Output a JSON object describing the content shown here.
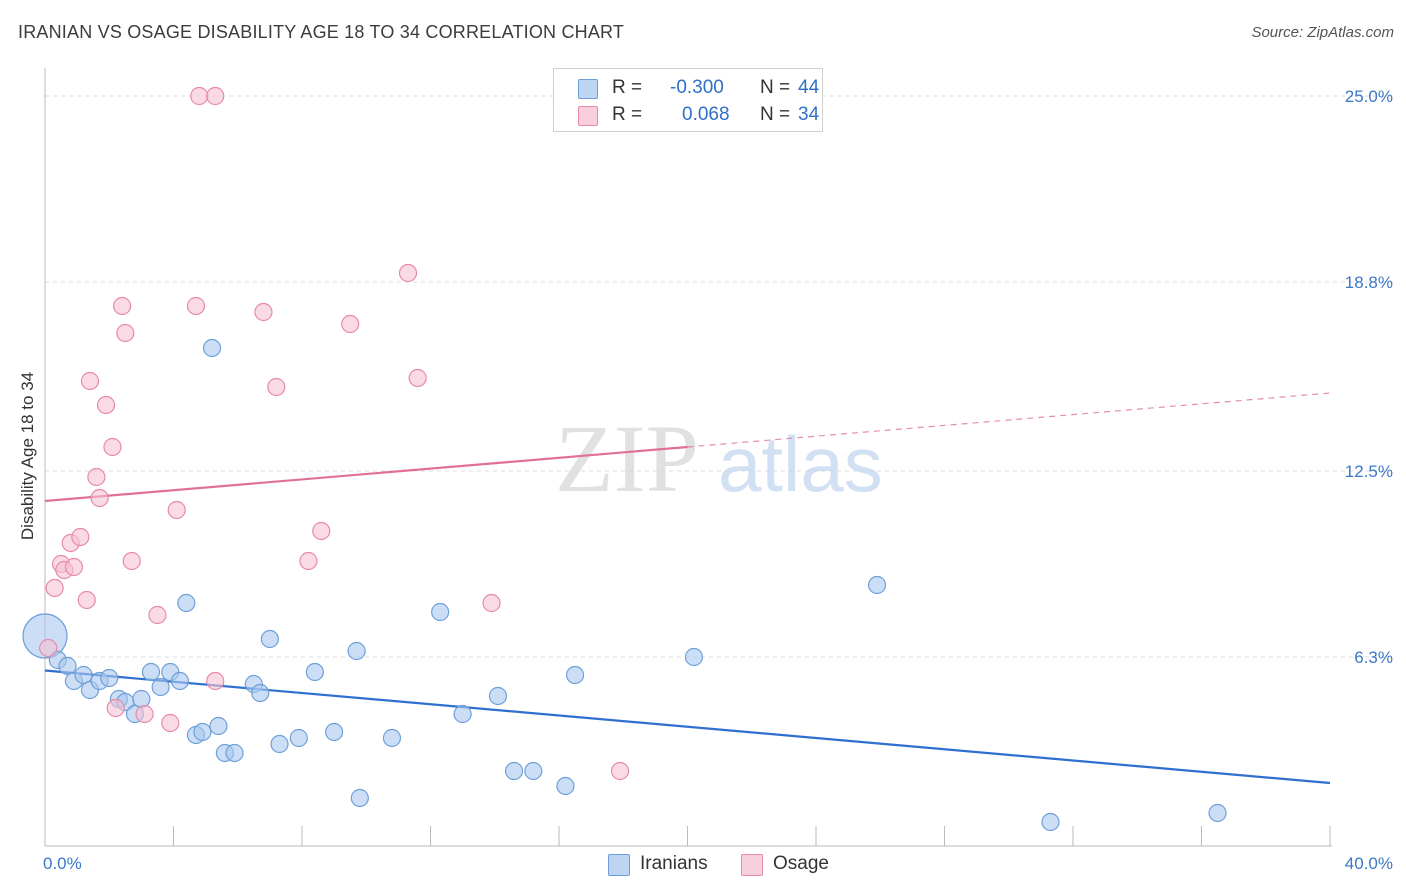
{
  "title": "IRANIAN VS OSAGE DISABILITY AGE 18 TO 34 CORRELATION CHART",
  "source": "Source: ZipAtlas.com",
  "watermark": {
    "zip": "ZIP",
    "atlas": "atlas"
  },
  "colors": {
    "iranians_fill": "#a9c8f0",
    "iranians_stroke": "#6e9fd8",
    "iranians_line": "#2f6fd0",
    "osage_fill": "#f6c2d3",
    "osage_stroke": "#e68aa8",
    "osage_line": "#e0709a",
    "tick_label": "#3a78c9",
    "grid": "#dddddd"
  },
  "legend": {
    "rows": [
      {
        "r_label": "R =",
        "r_value": "-0.300",
        "n_label": "N =",
        "n_value": "44"
      },
      {
        "r_label": "R =",
        "r_value": "0.068",
        "n_label": "N =",
        "n_value": "34"
      }
    ]
  },
  "chart_data": {
    "type": "scatter",
    "title": "IRANIAN VS OSAGE DISABILITY AGE 18 TO 34 CORRELATION CHART",
    "xlabel": "",
    "ylabel": "Disability Age 18 to 34",
    "xlim": [
      0,
      40
    ],
    "ylim": [
      0,
      25.6
    ],
    "x_tick_labels": [
      "0.0%",
      "40.0%"
    ],
    "y_ticks": [
      6.3,
      12.5,
      18.8,
      25.0
    ],
    "y_tick_labels": [
      "6.3%",
      "12.5%",
      "18.8%",
      "25.0%"
    ],
    "grid": "horizontal dashed",
    "legend_placement": "top-center and bottom",
    "series": [
      {
        "name": "Iranians",
        "r": -0.3,
        "n": 44,
        "trend": {
          "x": [
            0,
            40
          ],
          "y": [
            5.85,
            2.1
          ]
        },
        "trend_solid_to_x": 40,
        "points": [
          {
            "x": 0.0,
            "y": 7.0,
            "big": true
          },
          {
            "x": 0.4,
            "y": 6.2
          },
          {
            "x": 0.7,
            "y": 6.0
          },
          {
            "x": 0.9,
            "y": 5.5
          },
          {
            "x": 1.2,
            "y": 5.7
          },
          {
            "x": 1.4,
            "y": 5.2
          },
          {
            "x": 1.7,
            "y": 5.5
          },
          {
            "x": 2.0,
            "y": 5.6
          },
          {
            "x": 2.3,
            "y": 4.9
          },
          {
            "x": 2.5,
            "y": 4.8
          },
          {
            "x": 2.8,
            "y": 4.4
          },
          {
            "x": 3.0,
            "y": 4.9
          },
          {
            "x": 3.3,
            "y": 5.8
          },
          {
            "x": 3.6,
            "y": 5.3
          },
          {
            "x": 3.9,
            "y": 5.8
          },
          {
            "x": 4.2,
            "y": 5.5
          },
          {
            "x": 4.4,
            "y": 8.1
          },
          {
            "x": 4.7,
            "y": 3.7
          },
          {
            "x": 4.9,
            "y": 3.8
          },
          {
            "x": 5.2,
            "y": 16.6
          },
          {
            "x": 5.4,
            "y": 4.0
          },
          {
            "x": 5.6,
            "y": 3.1
          },
          {
            "x": 5.9,
            "y": 3.1
          },
          {
            "x": 6.5,
            "y": 5.4
          },
          {
            "x": 6.7,
            "y": 5.1
          },
          {
            "x": 7.0,
            "y": 6.9
          },
          {
            "x": 7.3,
            "y": 3.4
          },
          {
            "x": 7.9,
            "y": 3.6
          },
          {
            "x": 8.4,
            "y": 5.8
          },
          {
            "x": 9.0,
            "y": 3.8
          },
          {
            "x": 9.7,
            "y": 6.5
          },
          {
            "x": 9.8,
            "y": 1.6
          },
          {
            "x": 10.8,
            "y": 3.6
          },
          {
            "x": 12.3,
            "y": 7.8
          },
          {
            "x": 13.0,
            "y": 4.4
          },
          {
            "x": 14.1,
            "y": 5.0
          },
          {
            "x": 14.6,
            "y": 2.5
          },
          {
            "x": 15.2,
            "y": 2.5
          },
          {
            "x": 16.2,
            "y": 2.0
          },
          {
            "x": 16.5,
            "y": 5.7
          },
          {
            "x": 20.2,
            "y": 6.3
          },
          {
            "x": 25.9,
            "y": 8.7
          },
          {
            "x": 31.3,
            "y": 0.8
          },
          {
            "x": 36.5,
            "y": 1.1
          }
        ]
      },
      {
        "name": "Osage",
        "r": 0.068,
        "n": 34,
        "trend": {
          "x": [
            0,
            40
          ],
          "y": [
            11.5,
            15.1
          ]
        },
        "trend_solid_to_x": 20,
        "points": [
          {
            "x": 0.1,
            "y": 6.6
          },
          {
            "x": 0.3,
            "y": 8.6
          },
          {
            "x": 0.5,
            "y": 9.4
          },
          {
            "x": 0.6,
            "y": 9.2
          },
          {
            "x": 0.8,
            "y": 10.1
          },
          {
            "x": 0.9,
            "y": 9.3
          },
          {
            "x": 1.1,
            "y": 10.3
          },
          {
            "x": 1.3,
            "y": 8.2
          },
          {
            "x": 1.4,
            "y": 15.5
          },
          {
            "x": 1.6,
            "y": 12.3
          },
          {
            "x": 1.7,
            "y": 11.6
          },
          {
            "x": 1.9,
            "y": 14.7
          },
          {
            "x": 2.1,
            "y": 13.3
          },
          {
            "x": 2.2,
            "y": 4.6
          },
          {
            "x": 2.4,
            "y": 18.0
          },
          {
            "x": 2.5,
            "y": 17.1
          },
          {
            "x": 2.7,
            "y": 9.5
          },
          {
            "x": 3.1,
            "y": 4.4
          },
          {
            "x": 3.5,
            "y": 7.7
          },
          {
            "x": 3.9,
            "y": 4.1
          },
          {
            "x": 4.1,
            "y": 11.2
          },
          {
            "x": 4.7,
            "y": 18.0
          },
          {
            "x": 4.8,
            "y": 25.0
          },
          {
            "x": 5.3,
            "y": 25.0
          },
          {
            "x": 5.3,
            "y": 5.5
          },
          {
            "x": 6.8,
            "y": 17.8
          },
          {
            "x": 7.2,
            "y": 15.3
          },
          {
            "x": 8.2,
            "y": 9.5
          },
          {
            "x": 8.6,
            "y": 10.5
          },
          {
            "x": 9.5,
            "y": 17.4
          },
          {
            "x": 11.3,
            "y": 19.1
          },
          {
            "x": 11.6,
            "y": 15.6
          },
          {
            "x": 13.9,
            "y": 8.1
          },
          {
            "x": 17.9,
            "y": 2.5
          }
        ]
      }
    ]
  },
  "bottom_legend": [
    {
      "label": "Iranians"
    },
    {
      "label": "Osage"
    }
  ]
}
